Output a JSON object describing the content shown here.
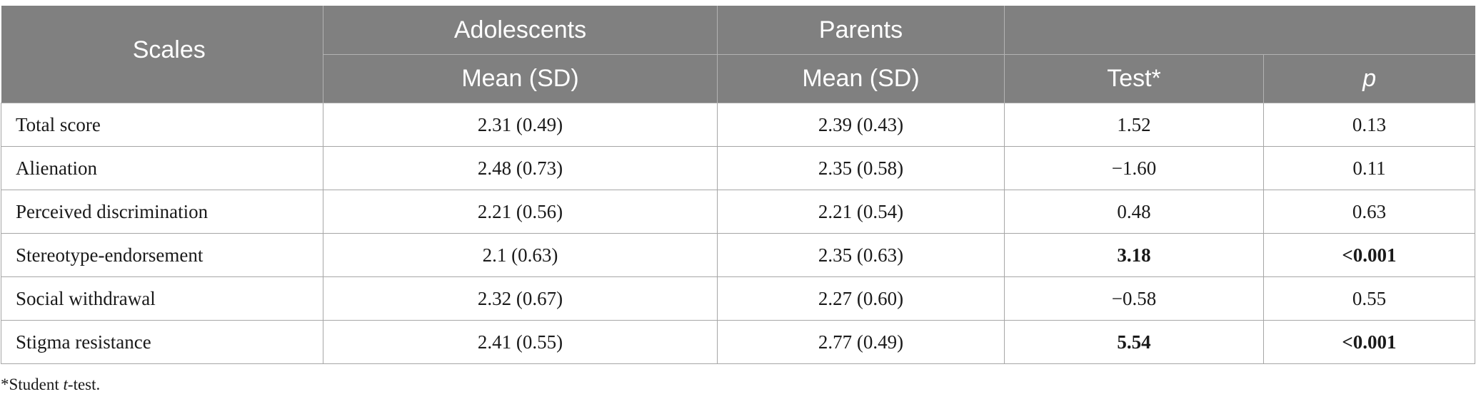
{
  "table": {
    "headers": {
      "scales": "Scales",
      "adolescents": "Adolescents",
      "parents": "Parents",
      "adolescents_sub": "Mean (SD)",
      "parents_sub": "Mean (SD)",
      "test": "Test*",
      "p": "p"
    },
    "rows": [
      {
        "scale": "Total score",
        "adolescents": "2.31 (0.49)",
        "parents": "2.39 (0.43)",
        "test": "1.52",
        "p": "0.13"
      },
      {
        "scale": "Alienation",
        "adolescents": "2.48 (0.73)",
        "parents": "2.35 (0.58)",
        "test": "−1.60",
        "p": "0.11"
      },
      {
        "scale": "Perceived discrimination",
        "adolescents": "2.21 (0.56)",
        "parents": "2.21 (0.54)",
        "test": "0.48",
        "p": "0.63"
      },
      {
        "scale": "Stereotype-endorsement",
        "adolescents": "2.1 (0.63)",
        "parents": "2.35 (0.63)",
        "test": "3.18",
        "p": "<0.001"
      },
      {
        "scale": "Social withdrawal",
        "adolescents": "2.32 (0.67)",
        "parents": "2.27 (0.60)",
        "test": "−0.58",
        "p": "0.55"
      },
      {
        "scale": "Stigma resistance",
        "adolescents": "2.41 (0.55)",
        "parents": "2.77 (0.49)",
        "test": "5.54",
        "p": "<0.001"
      }
    ]
  },
  "footnote": {
    "prefix": "*Student ",
    "italic": "t",
    "suffix": "-test."
  },
  "colors": {
    "header_bg": "#808080",
    "header_text": "#ffffff",
    "grid": "#a6a6a6"
  }
}
